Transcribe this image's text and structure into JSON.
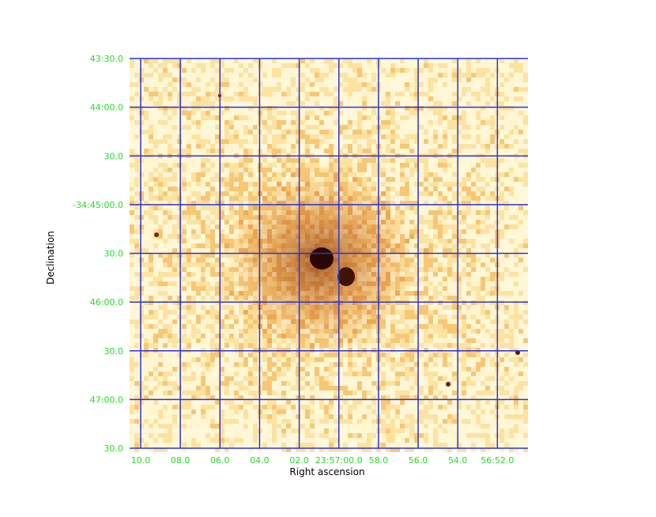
{
  "chart_data": {
    "type": "heatmap",
    "xlabel": "Right ascension",
    "ylabel": "Declination",
    "x_ticks": [
      "10.0",
      "08.0",
      "06.0",
      "04.0",
      "02.0",
      "23:57:00.0",
      "58.0",
      "56.0",
      "54.0",
      "56:52.0"
    ],
    "y_ticks": [
      "43:30.0",
      "44:00.0",
      "30.0",
      "-34:45:00.0",
      "30.0",
      "46:00.0",
      "30.0",
      "47:00.0",
      "30.0"
    ],
    "grid": true,
    "colors": {
      "grid": "#2b33d6",
      "tick_label": "#22dd22",
      "background_low": "#fff8d8",
      "mid": "#e8a050",
      "peak": "#2a0800"
    }
  }
}
